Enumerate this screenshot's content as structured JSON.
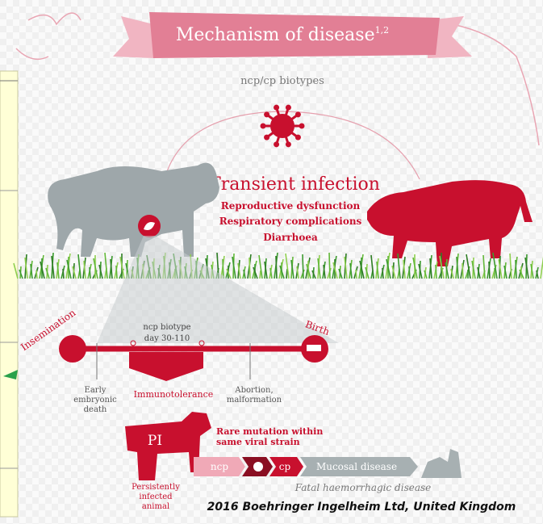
{
  "header": {
    "title": "Mechanism of disease",
    "superscript": "1,2"
  },
  "virus_label": "ncp/cp biotypes",
  "infection": {
    "title": "Transient infection",
    "effects": [
      "Reproductive dysfunction",
      "Respiratory complications",
      "Diarrhoea"
    ]
  },
  "timeline": {
    "start": "Insemination",
    "end": "Birth",
    "window": [
      "ncp biotype",
      "day 30-110"
    ],
    "outcomes": [
      [
        "Early",
        "embryonic",
        "death"
      ],
      [
        "Immunotolerance"
      ],
      [
        "Abortion,",
        "malformation"
      ]
    ]
  },
  "pi": {
    "label": "PI",
    "caption": [
      "Persistently",
      "infected",
      "animal"
    ]
  },
  "mutation": [
    "Rare mutation within",
    "same viral strain"
  ],
  "progression": {
    "steps": [
      "ncp",
      "cp",
      "Mucosal disease"
    ],
    "outcome": "Fatal haemorrhagic disease"
  },
  "credit": "2016 Boehringer Ingelheim Ltd, United Kingdom"
}
